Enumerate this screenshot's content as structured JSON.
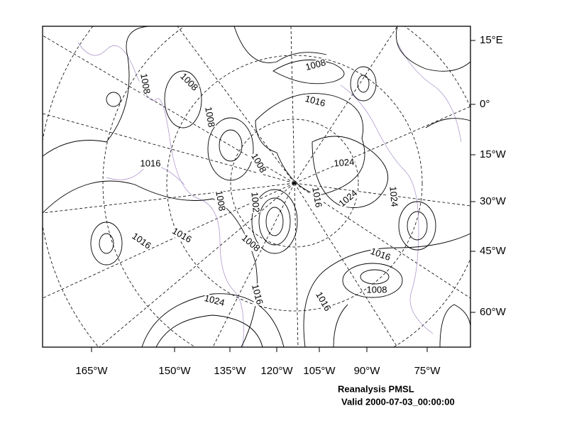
{
  "map": {
    "lon_labels": [
      "165°W",
      "150°W",
      "135°W",
      "120°W",
      "105°W",
      "90°W",
      "75°W"
    ],
    "lat_labels": [
      "15°E",
      "0°",
      "15°W",
      "30°W",
      "45°W",
      "60°W"
    ],
    "contour_labels": [
      "1008",
      "1008",
      "1008",
      "1008",
      "1016",
      "1016",
      "1008",
      "1024",
      "1002",
      "1016",
      "1024",
      "1024",
      "1008",
      "1016",
      "1016",
      "1008",
      "1016",
      "1008",
      "1024",
      "1016",
      "1016"
    ],
    "title": "Reanalysis PMSL",
    "subtitle": "Valid 2000-07-03_00:00:00"
  }
}
